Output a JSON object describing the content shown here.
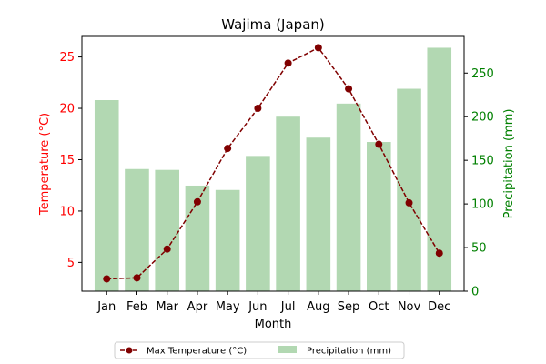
{
  "chart_data": {
    "type": "bar+line",
    "title": "Wajima (Japan)",
    "xlabel": "Month",
    "ylabel_left": "Temperature (°C)",
    "ylabel_right": "Precipitation (mm)",
    "categories": [
      "Jan",
      "Feb",
      "Mar",
      "Apr",
      "May",
      "Jun",
      "Jul",
      "Aug",
      "Sep",
      "Oct",
      "Nov",
      "Dec"
    ],
    "series": [
      {
        "name": "Max Temperature (°C)",
        "type": "line",
        "axis": "left",
        "color": "#800000",
        "line_style": "dashed",
        "marker": "circle",
        "values": [
          3.4,
          3.5,
          6.3,
          10.9,
          16.1,
          20.0,
          24.4,
          25.9,
          21.9,
          16.5,
          10.8,
          5.9
        ]
      },
      {
        "name": "Precipitation (mm)",
        "type": "bar",
        "axis": "right",
        "color": "#b2d8b2",
        "values": [
          219,
          140,
          139,
          121,
          116,
          155,
          200,
          176,
          215,
          171,
          232,
          279
        ]
      }
    ],
    "ylim_left": [
      2.2,
      27.0
    ],
    "yticks_left": [
      5,
      10,
      15,
      20,
      25
    ],
    "ylim_right": [
      0,
      292
    ],
    "yticks_right": [
      0,
      50,
      100,
      150,
      200,
      250
    ],
    "left_axis_color": "#ff0000",
    "right_axis_color": "#008000",
    "grid": false,
    "legend_position": "bottom-center"
  }
}
